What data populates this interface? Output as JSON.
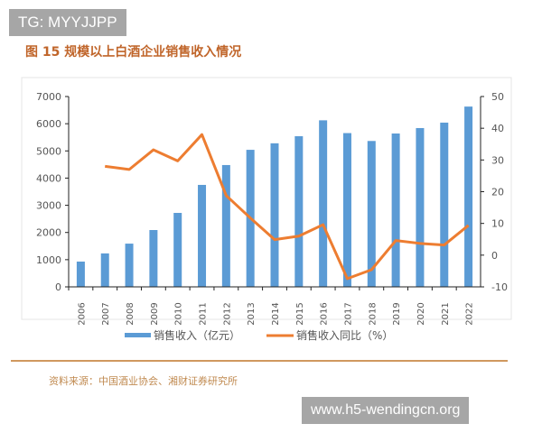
{
  "watermark_top": "TG: MYYJJPP",
  "watermark_bottom": "www.h5-wendingcn.org",
  "title": "图 15 规模以上白酒企业销售收入情况",
  "source": "资料来源：中国酒业协会、湘财证券研究所",
  "colors": {
    "bar": "#5b9bd5",
    "line": "#ed7d31",
    "title": "#c0652a",
    "rule": "#c0762a"
  },
  "chart_data": {
    "type": "bar+line",
    "categories": [
      "2006",
      "2007",
      "2008",
      "2009",
      "2010",
      "2011",
      "2012",
      "2013",
      "2014",
      "2015",
      "2016",
      "2017",
      "2018",
      "2019",
      "2020",
      "2021",
      "2022"
    ],
    "series": [
      {
        "name": "销售收入（亿元）",
        "type": "bar",
        "axis": "left",
        "values": [
          930,
          1230,
          1590,
          2090,
          2720,
          3750,
          4480,
          5040,
          5280,
          5540,
          6125,
          5655,
          5365,
          5640,
          5840,
          6040,
          6630
        ]
      },
      {
        "name": "销售收入同比（%）",
        "type": "line",
        "axis": "right",
        "values": [
          null,
          28,
          27,
          33.2,
          29.7,
          38,
          18.8,
          11.7,
          4.9,
          6,
          9.6,
          -7.4,
          -4.6,
          4.6,
          3.7,
          3.2,
          9.4
        ]
      }
    ],
    "y_left": {
      "min": 0,
      "max": 7000,
      "ticks": [
        0,
        1000,
        2000,
        3000,
        4000,
        5000,
        6000,
        7000
      ]
    },
    "y_right": {
      "min": -10,
      "max": 50,
      "ticks": [
        -10,
        0,
        10,
        20,
        30,
        40,
        50
      ]
    },
    "grid": false,
    "legend": "bottom"
  }
}
